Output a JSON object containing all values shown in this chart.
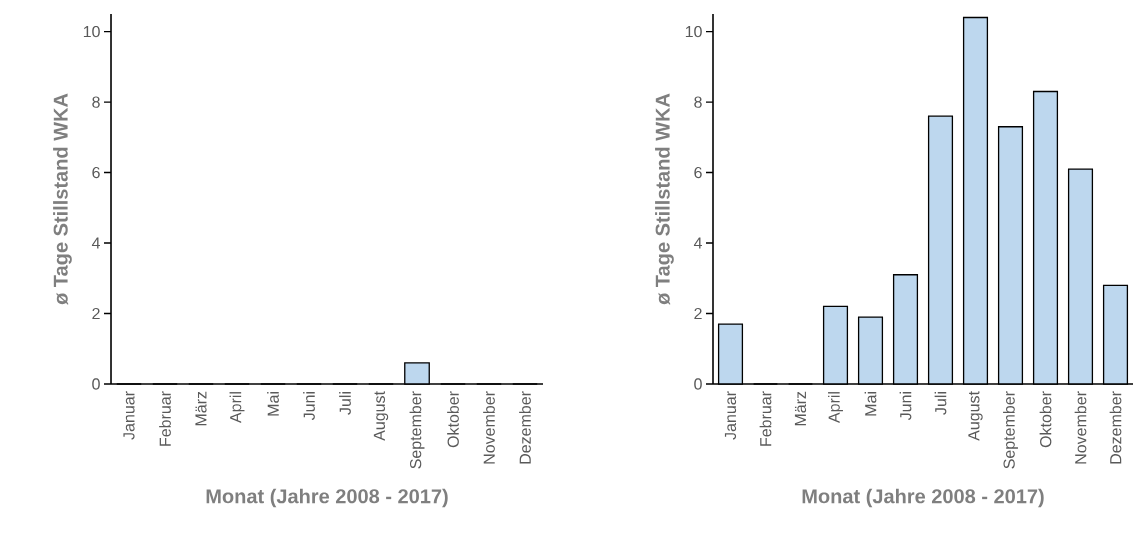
{
  "chart_data": [
    {
      "type": "bar",
      "xlabel": "Monat (Jahre 2008 - 2017)",
      "ylabel": "ø Tage Stillstand WKA",
      "categories": [
        "Januar",
        "Februar",
        "März",
        "April",
        "Mai",
        "Juni",
        "Juli",
        "August",
        "September",
        "Oktober",
        "November",
        "Dezember"
      ],
      "values": [
        0,
        0,
        0,
        0,
        0,
        0,
        0,
        0,
        0.6,
        0,
        0,
        0
      ],
      "color": "#bdd7ee",
      "ylim": [
        0,
        10.5
      ],
      "yticks": [
        0,
        2,
        4,
        6,
        8,
        10
      ]
    },
    {
      "type": "bar",
      "xlabel": "Monat (Jahre 2008 - 2017)",
      "ylabel": "ø Tage Stillstand WKA",
      "categories": [
        "Januar",
        "Februar",
        "März",
        "April",
        "Mai",
        "Juni",
        "Juli",
        "August",
        "September",
        "Oktober",
        "November",
        "Dezember"
      ],
      "values": [
        1.7,
        0,
        0,
        2.2,
        1.9,
        3.1,
        7.6,
        10.4,
        7.3,
        8.3,
        6.1,
        2.8
      ],
      "color": "#bdd7ee",
      "ylim": [
        0,
        10.5
      ],
      "yticks": [
        0,
        2,
        4,
        6,
        8,
        10
      ]
    }
  ]
}
